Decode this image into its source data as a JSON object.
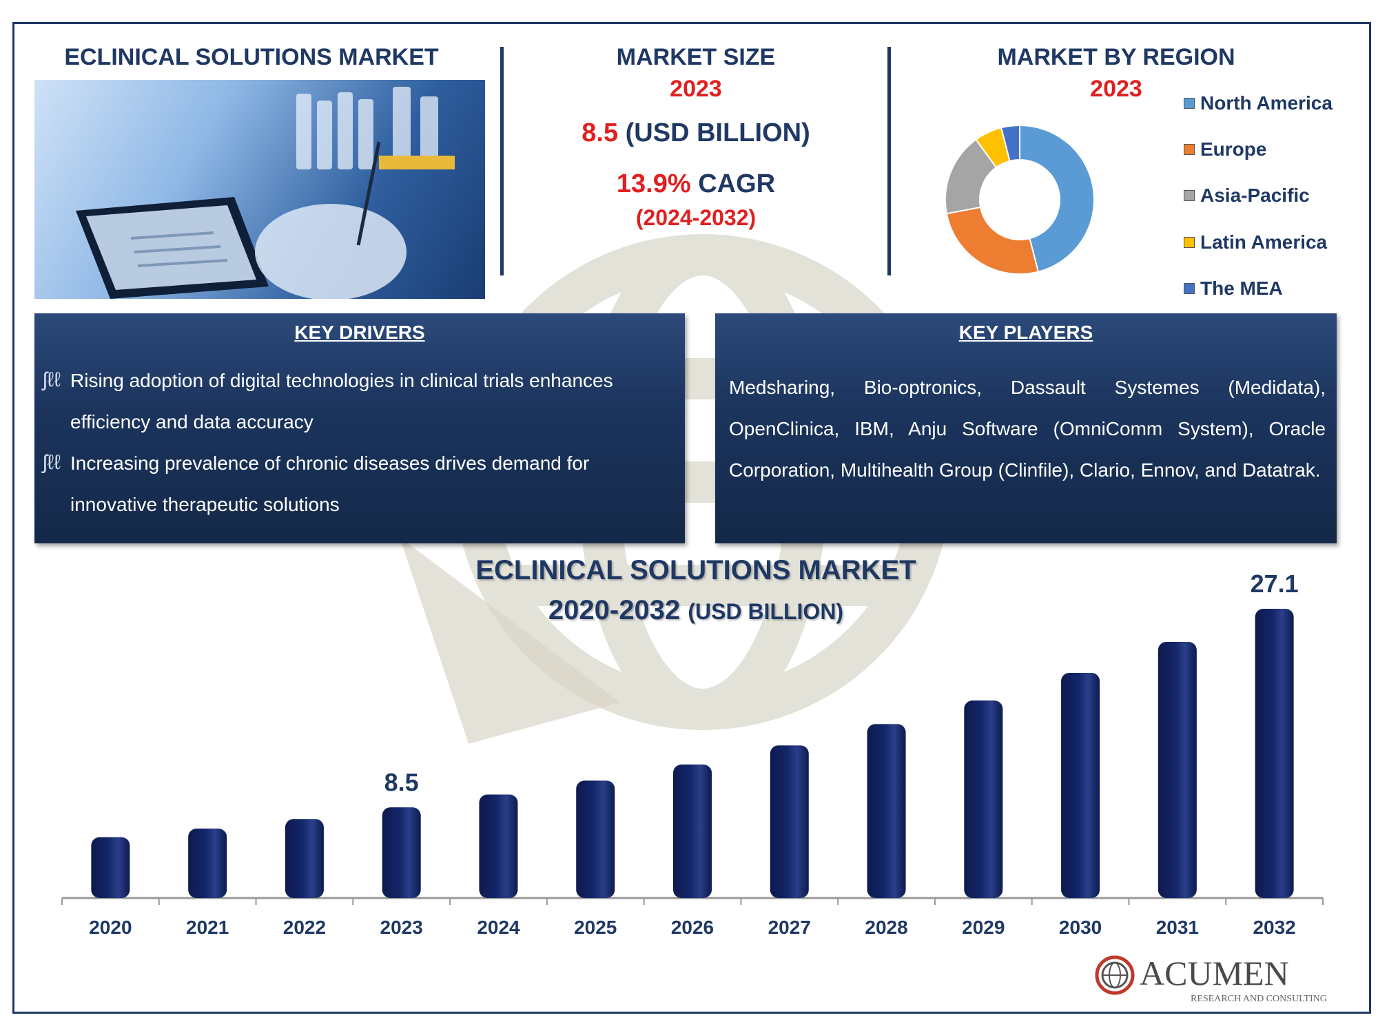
{
  "header": {
    "left_title": "ECLINICAL SOLUTIONS MARKET",
    "market_size_title": "MARKET SIZE",
    "market_size_year": "2023",
    "market_size_value": "8.5",
    "market_size_unit": "(USD BILLION)",
    "cagr_value": "13.9%",
    "cagr_label": "CAGR",
    "cagr_period": "(2024-2032)",
    "region_title": "MARKET BY REGION",
    "region_year": "2023"
  },
  "region_legend": [
    {
      "label": "North America",
      "color": "#5b9bd5"
    },
    {
      "label": "Europe",
      "color": "#ed7d31"
    },
    {
      "label": "Asia-Pacific",
      "color": "#a5a5a5"
    },
    {
      "label": "Latin America",
      "color": "#ffc000"
    },
    {
      "label": "The MEA",
      "color": "#4472c4"
    }
  ],
  "key_drivers": {
    "title": "KEY DRIVERS",
    "items": [
      {
        "line1": "Rising adoption of digital technologies in clinical trials enhances",
        "line2": "efficiency and data accuracy"
      },
      {
        "line1": "Increasing prevalence of chronic diseases drives demand for",
        "line2": "innovative therapeutic solutions"
      }
    ]
  },
  "key_players": {
    "title": "KEY PLAYERS",
    "text": "Medsharing, Bio-optronics, Dassault Systemes (Medidata), OpenClinica, IBM, Anju Software (OmniComm System), Oracle Corporation, Multihealth Group (Clinfile), Clario, Ennov, and Datatrak."
  },
  "chart_title": {
    "line1": "ECLINICAL SOLUTIONS MARKET",
    "line2_main": "2020-2032",
    "line2_unit": "(USD BILLION)"
  },
  "logo": {
    "name": "ACUMEN",
    "tagline": "RESEARCH AND CONSULTING"
  },
  "chart_data": [
    {
      "type": "pie",
      "title": "MARKET BY REGION",
      "subtitle": "2023",
      "categories": [
        "North America",
        "Europe",
        "Asia-Pacific",
        "Latin America",
        "The MEA"
      ],
      "values": [
        46,
        26,
        18,
        6,
        4
      ],
      "legend": "right"
    },
    {
      "type": "bar",
      "title": "ECLINICAL SOLUTIONS MARKET 2020-2032 (USD BILLION)",
      "categories": [
        "2020",
        "2021",
        "2022",
        "2023",
        "2024",
        "2025",
        "2026",
        "2027",
        "2028",
        "2029",
        "2030",
        "2031",
        "2032"
      ],
      "values": [
        5.7,
        6.5,
        7.4,
        8.5,
        9.7,
        11.0,
        12.5,
        14.3,
        16.3,
        18.5,
        21.1,
        24.0,
        27.1
      ],
      "data_labels": {
        "2023": "8.5",
        "2032": "27.1"
      },
      "xlabel": "",
      "ylabel": "",
      "ylim": [
        0,
        30
      ],
      "grid": false,
      "bar_color": "#14266a"
    }
  ]
}
